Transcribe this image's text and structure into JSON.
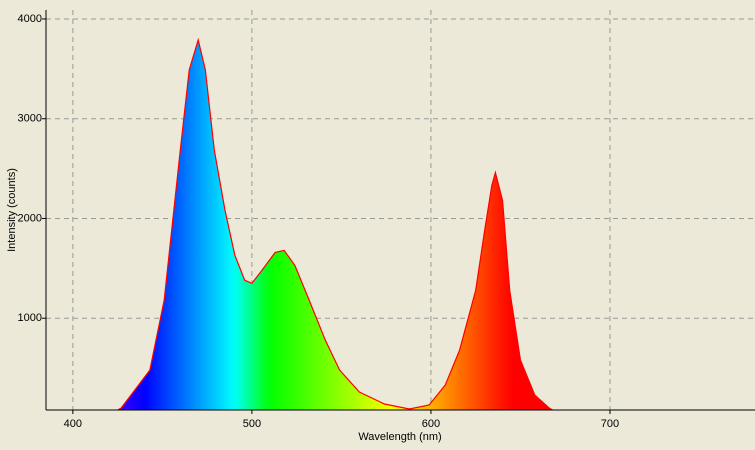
{
  "chart_data": {
    "type": "area",
    "xlabel": "Wavelength (nm)",
    "ylabel": "Intensity (counts)",
    "series": [
      {
        "color": "#ff0000",
        "x": [
          425,
          427,
          443,
          451,
          460,
          465,
          470,
          474,
          479,
          485,
          490.5,
          496,
          500,
          505.6,
          513,
          518,
          524,
          532,
          541,
          549,
          560,
          574,
          588,
          599,
          608,
          616,
          625,
          630,
          634,
          636,
          640,
          644,
          650,
          658,
          666,
          668
        ],
        "values": [
          80,
          100,
          480,
          1180,
          2685,
          3490,
          3790,
          3490,
          2685,
          2080,
          1630,
          1380,
          1350,
          1480,
          1660,
          1680,
          1530,
          1180,
          780,
          480,
          260,
          140,
          90,
          130,
          330,
          680,
          1280,
          1880,
          2330,
          2460,
          2180,
          1280,
          580,
          230,
          100,
          80
        ]
      }
    ],
    "xlim": [
      385,
      781
    ],
    "ylim": [
      80,
      4090
    ],
    "xticks": [
      400,
      500,
      600,
      700
    ],
    "yticks": [
      1000,
      2000,
      3000,
      4000
    ],
    "grid": true,
    "fill": "spectrum"
  }
}
